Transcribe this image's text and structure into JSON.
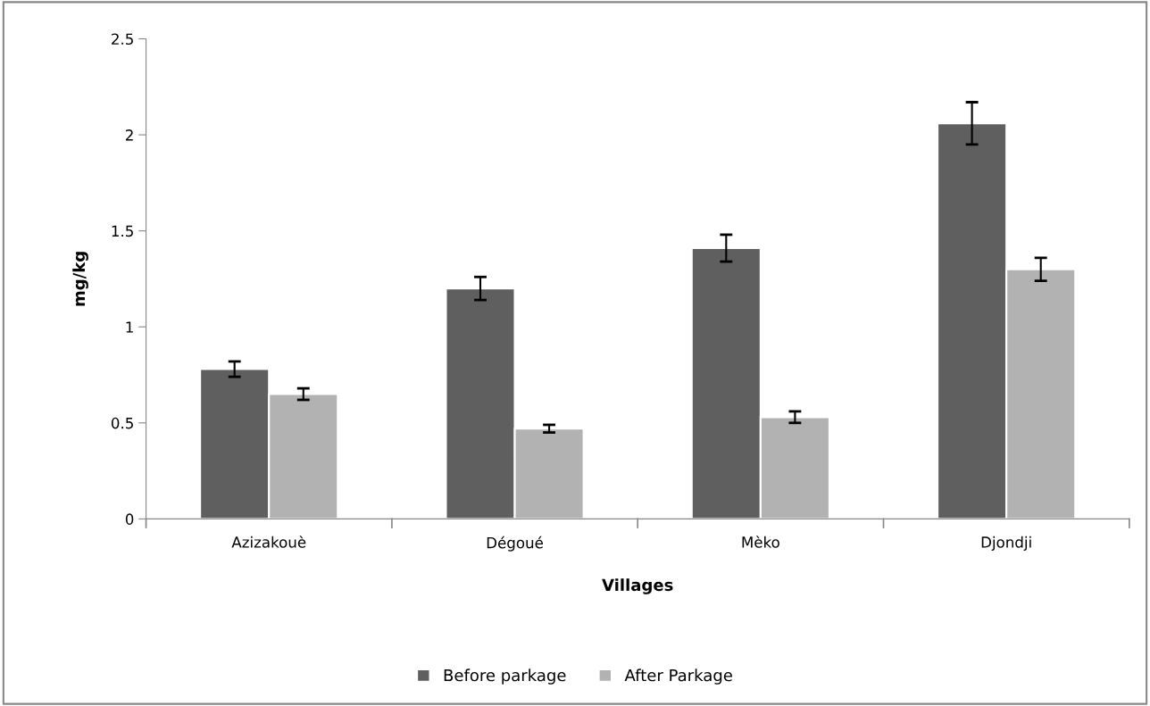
{
  "chart_data": {
    "type": "bar",
    "xlabel": "Villages",
    "ylabel": "mg/kg",
    "categories": [
      "Azizakouè",
      "Dégoué",
      "Mèko",
      "Djondji"
    ],
    "series": [
      {
        "name": "Before parkage",
        "color": "#5f5f5f",
        "values": [
          0.78,
          1.2,
          1.41,
          2.06
        ],
        "errors": [
          0.04,
          0.06,
          0.07,
          0.11
        ]
      },
      {
        "name": "After Parkage",
        "color": "#b2b2b2",
        "values": [
          0.65,
          0.47,
          0.53,
          1.3
        ],
        "errors": [
          0.03,
          0.02,
          0.03,
          0.06
        ]
      }
    ],
    "ylim": [
      0,
      2.5
    ],
    "yticks": [
      0,
      0.5,
      1,
      1.5,
      2,
      2.5
    ],
    "grid": false,
    "legend": "bottom"
  }
}
